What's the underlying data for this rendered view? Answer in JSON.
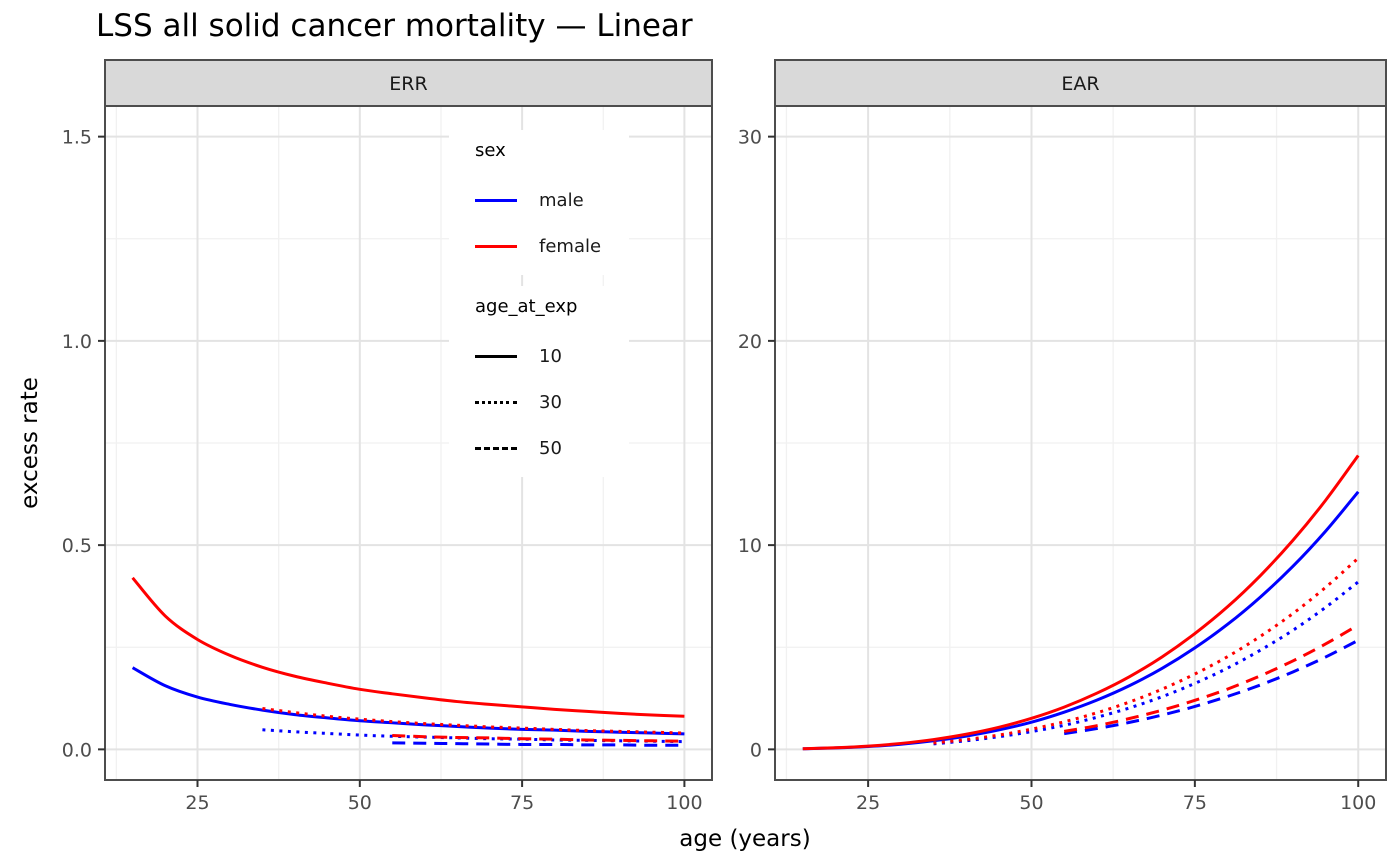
{
  "title": "LSS all solid cancer mortality — Linear",
  "x_axis_label": "age (years)",
  "y_axis_label": "excess rate",
  "style": {
    "male_color": "#0000FF",
    "female_color": "#FF0000",
    "strip_bg": "#D9D9D9",
    "panel_border": "#4D4D4D",
    "grid_major": "#E3E3E3",
    "grid_minor": "#F1F1F1",
    "tick_mark": "#333333",
    "tick_text": "#4D4D4D",
    "strip_text": "#1A1A1A"
  },
  "legend": {
    "sex": {
      "title": "sex",
      "items": [
        {
          "label": "male",
          "color": "#0000FF",
          "dash": "solid"
        },
        {
          "label": "female",
          "color": "#FF0000",
          "dash": "solid"
        }
      ]
    },
    "age_at_exp": {
      "title": "age_at_exp",
      "items": [
        {
          "label": "10",
          "dash": "solid"
        },
        {
          "label": "30",
          "dash": "dotted"
        },
        {
          "label": "50",
          "dash": "dashed"
        }
      ]
    }
  },
  "chart_data": [
    {
      "facet": "ERR",
      "type": "line",
      "xlabel": "age (years)",
      "ylabel": "excess rate",
      "xlim": [
        10.75,
        104.25
      ],
      "ylim": [
        -0.075,
        1.575
      ],
      "x_ticks": [
        25,
        50,
        75,
        100
      ],
      "x_tick_labels": [
        "25",
        "50",
        "75",
        "100"
      ],
      "y_ticks": [
        0,
        0.5,
        1.0,
        1.5
      ],
      "y_tick_labels": [
        "0.0",
        "0.5",
        "1.0",
        "1.5"
      ],
      "grid": true,
      "legend_position": "inside-top-center",
      "series": [
        {
          "name": "male_exp10",
          "sex": "male",
          "age_at_exp": 10,
          "color": "#0000FF",
          "linetype": "solid",
          "x": [
            15,
            20,
            25,
            30,
            35,
            40,
            45,
            50,
            55,
            60,
            65,
            70,
            75,
            80,
            85,
            90,
            95,
            100
          ],
          "y": [
            0.2,
            0.156,
            0.128,
            0.11,
            0.096,
            0.085,
            0.077,
            0.07,
            0.065,
            0.06,
            0.056,
            0.052,
            0.049,
            0.047,
            0.044,
            0.042,
            0.04,
            0.038
          ]
        },
        {
          "name": "female_exp10",
          "sex": "female",
          "age_at_exp": 10,
          "color": "#FF0000",
          "linetype": "solid",
          "x": [
            15,
            20,
            25,
            30,
            35,
            40,
            45,
            50,
            55,
            60,
            65,
            70,
            75,
            80,
            85,
            90,
            95,
            100
          ],
          "y": [
            0.42,
            0.327,
            0.269,
            0.23,
            0.201,
            0.179,
            0.162,
            0.147,
            0.136,
            0.126,
            0.117,
            0.11,
            0.104,
            0.098,
            0.093,
            0.088,
            0.084,
            0.081
          ]
        },
        {
          "name": "male_exp30",
          "sex": "male",
          "age_at_exp": 30,
          "color": "#0000FF",
          "linetype": "dotted",
          "x": [
            35,
            40,
            45,
            50,
            55,
            60,
            65,
            70,
            75,
            80,
            85,
            90,
            95,
            100
          ],
          "y": [
            0.048,
            0.043,
            0.039,
            0.035,
            0.032,
            0.03,
            0.028,
            0.026,
            0.025,
            0.023,
            0.022,
            0.021,
            0.02,
            0.019
          ]
        },
        {
          "name": "female_exp30",
          "sex": "female",
          "age_at_exp": 30,
          "color": "#FF0000",
          "linetype": "dotted",
          "x": [
            35,
            40,
            45,
            50,
            55,
            60,
            65,
            70,
            75,
            80,
            85,
            90,
            95,
            100
          ],
          "y": [
            0.1,
            0.09,
            0.081,
            0.074,
            0.068,
            0.063,
            0.059,
            0.055,
            0.052,
            0.049,
            0.046,
            0.044,
            0.042,
            0.04
          ]
        },
        {
          "name": "male_exp50",
          "sex": "male",
          "age_at_exp": 50,
          "color": "#0000FF",
          "linetype": "dashed",
          "x": [
            55,
            60,
            65,
            70,
            75,
            80,
            85,
            90,
            95,
            100
          ],
          "y": [
            0.016,
            0.015,
            0.014,
            0.013,
            0.012,
            0.012,
            0.011,
            0.011,
            0.01,
            0.01
          ]
        },
        {
          "name": "female_exp50",
          "sex": "female",
          "age_at_exp": 50,
          "color": "#FF0000",
          "linetype": "dashed",
          "x": [
            55,
            60,
            65,
            70,
            75,
            80,
            85,
            90,
            95,
            100
          ],
          "y": [
            0.034,
            0.031,
            0.029,
            0.028,
            0.026,
            0.025,
            0.023,
            0.022,
            0.021,
            0.02
          ]
        }
      ]
    },
    {
      "facet": "EAR",
      "type": "line",
      "xlabel": "age (years)",
      "ylabel": "excess rate",
      "xlim": [
        10.75,
        104.25
      ],
      "ylim": [
        -1.5,
        31.5
      ],
      "x_ticks": [
        25,
        50,
        75,
        100
      ],
      "x_tick_labels": [
        "25",
        "50",
        "75",
        "100"
      ],
      "y_ticks": [
        0,
        10,
        20,
        30
      ],
      "y_tick_labels": [
        "0",
        "10",
        "20",
        "30"
      ],
      "grid": true,
      "legend_position": "none",
      "series": [
        {
          "name": "male_exp10",
          "sex": "male",
          "age_at_exp": 10,
          "color": "#0000FF",
          "linetype": "solid",
          "x": [
            15,
            20,
            25,
            30,
            35,
            40,
            45,
            50,
            55,
            60,
            65,
            70,
            75,
            80,
            85,
            90,
            95,
            100
          ],
          "y": [
            0.03,
            0.07,
            0.14,
            0.25,
            0.42,
            0.65,
            0.95,
            1.33,
            1.82,
            2.41,
            3.12,
            3.97,
            4.97,
            6.12,
            7.45,
            8.96,
            10.68,
            12.61
          ]
        },
        {
          "name": "female_exp10",
          "sex": "female",
          "age_at_exp": 10,
          "color": "#FF0000",
          "linetype": "solid",
          "x": [
            15,
            20,
            25,
            30,
            35,
            40,
            45,
            50,
            55,
            60,
            65,
            70,
            75,
            80,
            85,
            90,
            95,
            100
          ],
          "y": [
            0.03,
            0.08,
            0.16,
            0.29,
            0.48,
            0.74,
            1.08,
            1.52,
            2.07,
            2.75,
            3.56,
            4.53,
            5.67,
            6.98,
            8.5,
            10.23,
            12.19,
            14.39
          ]
        },
        {
          "name": "male_exp30",
          "sex": "male",
          "age_at_exp": 30,
          "color": "#0000FF",
          "linetype": "dotted",
          "x": [
            35,
            40,
            45,
            50,
            55,
            60,
            65,
            70,
            75,
            80,
            85,
            90,
            95,
            100
          ],
          "y": [
            0.27,
            0.42,
            0.62,
            0.87,
            1.18,
            1.57,
            2.03,
            2.58,
            3.23,
            3.98,
            4.85,
            5.83,
            6.95,
            8.2
          ]
        },
        {
          "name": "female_exp30",
          "sex": "female",
          "age_at_exp": 30,
          "color": "#FF0000",
          "linetype": "dotted",
          "x": [
            35,
            40,
            45,
            50,
            55,
            60,
            65,
            70,
            75,
            80,
            85,
            90,
            95,
            100
          ],
          "y": [
            0.31,
            0.48,
            0.7,
            0.99,
            1.35,
            1.79,
            2.32,
            2.95,
            3.69,
            4.54,
            5.53,
            6.65,
            7.93,
            9.36
          ]
        },
        {
          "name": "male_exp50",
          "sex": "male",
          "age_at_exp": 50,
          "color": "#0000FF",
          "linetype": "dashed",
          "x": [
            55,
            60,
            65,
            70,
            75,
            80,
            85,
            90,
            95,
            100
          ],
          "y": [
            0.77,
            1.02,
            1.32,
            1.68,
            2.1,
            2.59,
            3.15,
            3.79,
            4.52,
            5.34
          ]
        },
        {
          "name": "female_exp50",
          "sex": "female",
          "age_at_exp": 50,
          "color": "#FF0000",
          "linetype": "dashed",
          "x": [
            55,
            60,
            65,
            70,
            75,
            80,
            85,
            90,
            95,
            100
          ],
          "y": [
            0.88,
            1.16,
            1.51,
            1.92,
            2.4,
            2.95,
            3.6,
            4.33,
            5.16,
            6.09
          ]
        }
      ]
    }
  ]
}
